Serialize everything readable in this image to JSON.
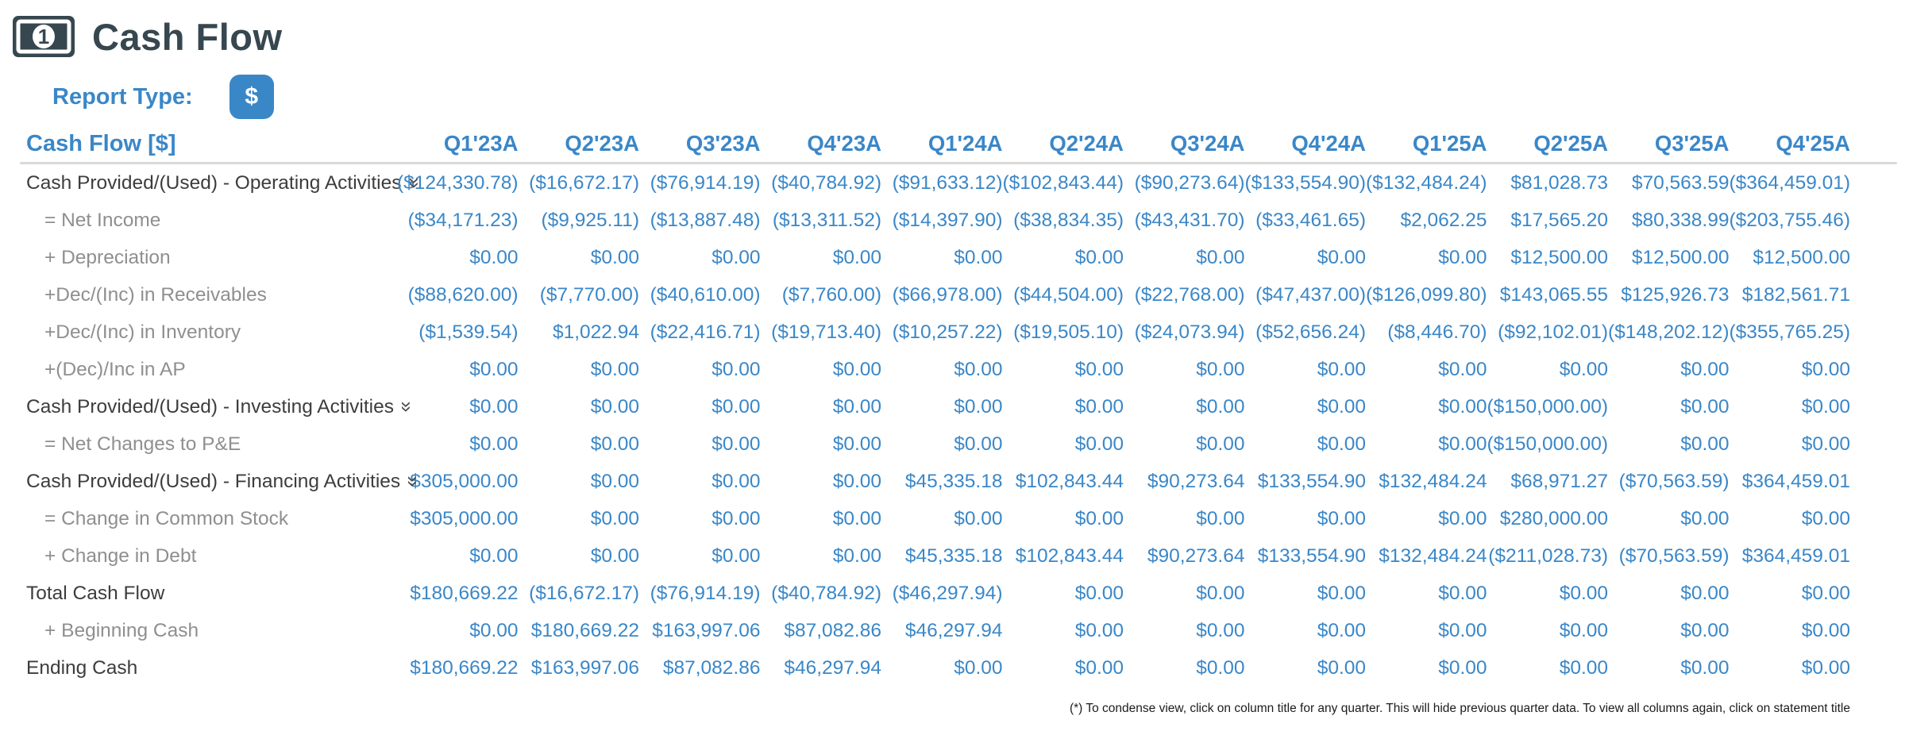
{
  "header": {
    "title": "Cash Flow",
    "report_type_label": "Report Type:",
    "report_type_button": "$"
  },
  "icons": {
    "banknote": "banknote-icon",
    "collapse_chevron": "»"
  },
  "colors": {
    "accent_blue": "#3a87c8",
    "title_slate": "#37474f",
    "sub_label_gray": "#8f8f8f",
    "section_label_dark": "#3d3d3d",
    "divider_gray": "#d9d9d9"
  },
  "table": {
    "corner_label": "Cash Flow [$]",
    "columns": [
      "Q1'23A",
      "Q2'23A",
      "Q3'23A",
      "Q4'23A",
      "Q1'24A",
      "Q2'24A",
      "Q3'24A",
      "Q4'24A",
      "Q1'25A",
      "Q2'25A",
      "Q3'25A",
      "Q4'25A"
    ],
    "rows": [
      {
        "label": "Cash Provided/(Used) - Operating Activities",
        "type": "section",
        "expandable": true,
        "values": [
          "($124,330.78)",
          "($16,672.17)",
          "($76,914.19)",
          "($40,784.92)",
          "($91,633.12)",
          "($102,843.44)",
          "($90,273.64)",
          "($133,554.90)",
          "($132,484.24)",
          "$81,028.73",
          "$70,563.59",
          "($364,459.01)"
        ]
      },
      {
        "label": "= Net Income",
        "type": "sub",
        "expandable": false,
        "values": [
          "($34,171.23)",
          "($9,925.11)",
          "($13,887.48)",
          "($13,311.52)",
          "($14,397.90)",
          "($38,834.35)",
          "($43,431.70)",
          "($33,461.65)",
          "$2,062.25",
          "$17,565.20",
          "$80,338.99",
          "($203,755.46)"
        ]
      },
      {
        "label": "+ Depreciation",
        "type": "sub",
        "expandable": false,
        "values": [
          "$0.00",
          "$0.00",
          "$0.00",
          "$0.00",
          "$0.00",
          "$0.00",
          "$0.00",
          "$0.00",
          "$0.00",
          "$12,500.00",
          "$12,500.00",
          "$12,500.00"
        ]
      },
      {
        "label": "+Dec/(Inc) in Receivables",
        "type": "sub",
        "expandable": false,
        "values": [
          "($88,620.00)",
          "($7,770.00)",
          "($40,610.00)",
          "($7,760.00)",
          "($66,978.00)",
          "($44,504.00)",
          "($22,768.00)",
          "($47,437.00)",
          "($126,099.80)",
          "$143,065.55",
          "$125,926.73",
          "$182,561.71"
        ]
      },
      {
        "label": "+Dec/(Inc) in Inventory",
        "type": "sub",
        "expandable": false,
        "values": [
          "($1,539.54)",
          "$1,022.94",
          "($22,416.71)",
          "($19,713.40)",
          "($10,257.22)",
          "($19,505.10)",
          "($24,073.94)",
          "($52,656.24)",
          "($8,446.70)",
          "($92,102.01)",
          "($148,202.12)",
          "($355,765.25)"
        ]
      },
      {
        "label": "+(Dec)/Inc in AP",
        "type": "sub",
        "expandable": false,
        "values": [
          "$0.00",
          "$0.00",
          "$0.00",
          "$0.00",
          "$0.00",
          "$0.00",
          "$0.00",
          "$0.00",
          "$0.00",
          "$0.00",
          "$0.00",
          "$0.00"
        ]
      },
      {
        "label": "Cash Provided/(Used) - Investing Activities",
        "type": "section",
        "expandable": true,
        "values": [
          "$0.00",
          "$0.00",
          "$0.00",
          "$0.00",
          "$0.00",
          "$0.00",
          "$0.00",
          "$0.00",
          "$0.00",
          "($150,000.00)",
          "$0.00",
          "$0.00"
        ]
      },
      {
        "label": "= Net Changes to P&E",
        "type": "sub",
        "expandable": false,
        "values": [
          "$0.00",
          "$0.00",
          "$0.00",
          "$0.00",
          "$0.00",
          "$0.00",
          "$0.00",
          "$0.00",
          "$0.00",
          "($150,000.00)",
          "$0.00",
          "$0.00"
        ]
      },
      {
        "label": "Cash Provided/(Used) - Financing Activities",
        "type": "section",
        "expandable": true,
        "values": [
          "$305,000.00",
          "$0.00",
          "$0.00",
          "$0.00",
          "$45,335.18",
          "$102,843.44",
          "$90,273.64",
          "$133,554.90",
          "$132,484.24",
          "$68,971.27",
          "($70,563.59)",
          "$364,459.01"
        ]
      },
      {
        "label": "= Change in Common Stock",
        "type": "sub",
        "expandable": false,
        "values": [
          "$305,000.00",
          "$0.00",
          "$0.00",
          "$0.00",
          "$0.00",
          "$0.00",
          "$0.00",
          "$0.00",
          "$0.00",
          "$280,000.00",
          "$0.00",
          "$0.00"
        ]
      },
      {
        "label": "+ Change in Debt",
        "type": "sub",
        "expandable": false,
        "values": [
          "$0.00",
          "$0.00",
          "$0.00",
          "$0.00",
          "$45,335.18",
          "$102,843.44",
          "$90,273.64",
          "$133,554.90",
          "$132,484.24",
          "($211,028.73)",
          "($70,563.59)",
          "$364,459.01"
        ]
      },
      {
        "label": "Total Cash Flow",
        "type": "section",
        "expandable": false,
        "values": [
          "$180,669.22",
          "($16,672.17)",
          "($76,914.19)",
          "($40,784.92)",
          "($46,297.94)",
          "$0.00",
          "$0.00",
          "$0.00",
          "$0.00",
          "$0.00",
          "$0.00",
          "$0.00"
        ]
      },
      {
        "label": "+ Beginning Cash",
        "type": "sub",
        "expandable": false,
        "values": [
          "$0.00",
          "$180,669.22",
          "$163,997.06",
          "$87,082.86",
          "$46,297.94",
          "$0.00",
          "$0.00",
          "$0.00",
          "$0.00",
          "$0.00",
          "$0.00",
          "$0.00"
        ]
      },
      {
        "label": "Ending Cash",
        "type": "section",
        "expandable": false,
        "values": [
          "$180,669.22",
          "$163,997.06",
          "$87,082.86",
          "$46,297.94",
          "$0.00",
          "$0.00",
          "$0.00",
          "$0.00",
          "$0.00",
          "$0.00",
          "$0.00",
          "$0.00"
        ]
      }
    ]
  },
  "footer": {
    "note": "(*) To condense view, click on column title for any quarter. This will hide previous quarter data. To view all columns again, click on statement title"
  }
}
